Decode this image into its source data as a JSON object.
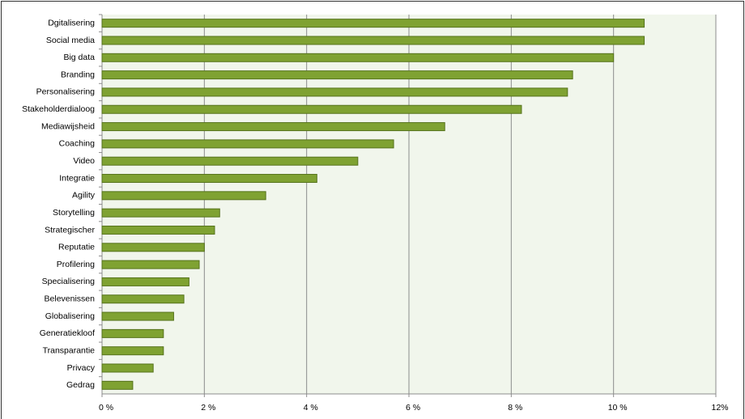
{
  "chart_data": {
    "type": "bar",
    "orientation": "horizontal",
    "categories": [
      "Dgitalisering",
      "Social media",
      "Big data",
      "Branding",
      "Personalisering",
      "Stakeholderdialoog",
      "Mediawijsheid",
      "Coaching",
      "Video",
      "Integratie",
      "Agility",
      "Storytelling",
      "Strategischer",
      "Reputatie",
      "Profilering",
      "Specialisering",
      "Belevenissen",
      "Globalisering",
      "Generatiekloof",
      "Transparantie",
      "Privacy",
      "Gedrag"
    ],
    "values": [
      10.6,
      10.6,
      10.0,
      9.2,
      9.1,
      8.2,
      6.7,
      5.7,
      5.0,
      4.2,
      3.2,
      2.3,
      2.2,
      2.0,
      1.9,
      1.7,
      1.6,
      1.4,
      1.2,
      1.2,
      1.0,
      0.6
    ],
    "color": "#7fa232",
    "xlim": [
      0,
      12
    ],
    "xticks": [
      {
        "value": 0,
        "label": "0 %"
      },
      {
        "value": 2,
        "label": "2 %"
      },
      {
        "value": 4,
        "label": "4 %"
      },
      {
        "value": 6,
        "label": "6 %"
      },
      {
        "value": 8,
        "label": "8 %"
      },
      {
        "value": 10,
        "label": "10 %"
      },
      {
        "value": 12,
        "label": "12%"
      }
    ],
    "grid": true
  }
}
